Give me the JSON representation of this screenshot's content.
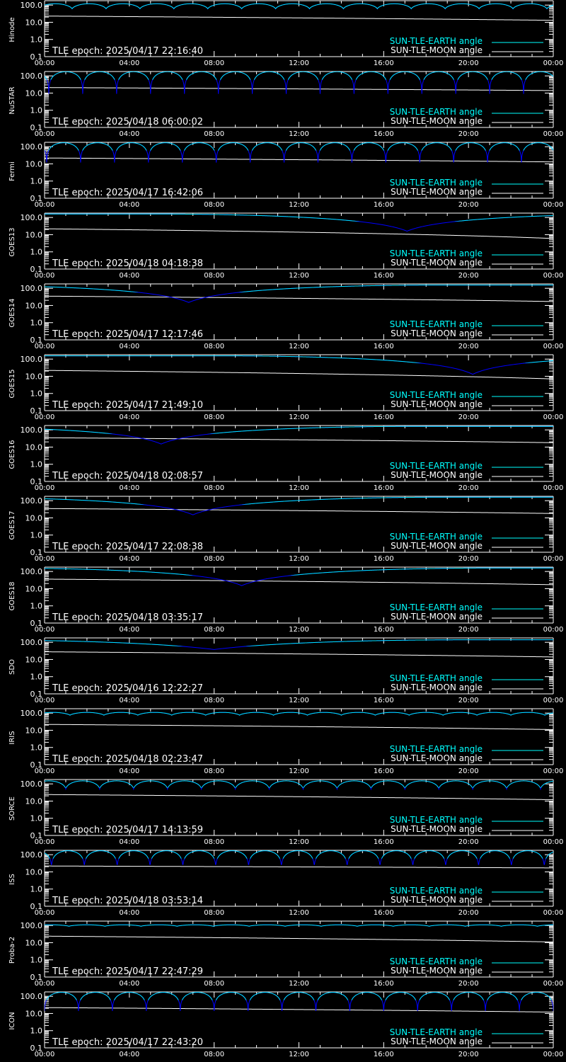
{
  "figure": {
    "background": "#000000",
    "axis_color": "#ffffff",
    "earth_color_high": "#00ffff",
    "earth_color_low": "#0000ff",
    "moon_color": "#ffffff"
  },
  "x_tick_labels": [
    "00:00",
    "04:00",
    "08:00",
    "12:00",
    "16:00",
    "20:00",
    "00:00"
  ],
  "y_tick_labels": [
    "100.0",
    "10.0",
    "1.0",
    "0.1"
  ],
  "legend": {
    "earth_label": "SUN-TLE-EARTH angle",
    "moon_label": "SUN-TLE-MOON angle"
  },
  "chart_data": [
    {
      "type": "line",
      "name": "Hinode",
      "epoch": "TLE epoch: 2025/04/17 22:16:40",
      "xlim": [
        0,
        24
      ],
      "ylim": [
        0.1,
        180
      ],
      "yscale": "log",
      "x_unit": "hours",
      "earth": {
        "model": "oscillating",
        "min": 60,
        "max": 120,
        "period_hours": 1.6,
        "phase_hours": 0.5
      },
      "moon": {
        "model": "linear",
        "start": 23,
        "end": 13
      }
    },
    {
      "type": "line",
      "name": "NuSTAR",
      "epoch": "TLE epoch: 2025/04/18 06:00:02",
      "xlim": [
        0,
        24
      ],
      "ylim": [
        0.1,
        180
      ],
      "yscale": "log",
      "x_unit": "hours",
      "earth": {
        "model": "oscillating",
        "min": 9,
        "max": 175,
        "period_hours": 1.6,
        "phase_hours": 1.0
      },
      "moon": {
        "model": "linear",
        "start": 21,
        "end": 14
      }
    },
    {
      "type": "line",
      "name": "Fermi",
      "epoch": "TLE epoch: 2025/04/17 16:42:06",
      "xlim": [
        0,
        24
      ],
      "ylim": [
        0.1,
        180
      ],
      "yscale": "log",
      "x_unit": "hours",
      "earth": {
        "model": "oscillating",
        "min": 12,
        "max": 170,
        "period_hours": 1.6,
        "phase_hours": 0.9
      },
      "moon": {
        "model": "linear",
        "start": 22,
        "end": 13
      }
    },
    {
      "type": "line",
      "name": "GOES13",
      "epoch": "TLE epoch: 2025/04/18 04:18:38",
      "xlim": [
        0,
        24
      ],
      "ylim": [
        0.1,
        180
      ],
      "yscale": "log",
      "x_unit": "hours",
      "earth": {
        "model": "geo",
        "min": 16,
        "max": 160,
        "min_hour": 17.1
      },
      "moon": {
        "model": "linear",
        "start": 22,
        "end": 6
      }
    },
    {
      "type": "line",
      "name": "GOES14",
      "epoch": "TLE epoch: 2025/04/17 12:17:46",
      "xlim": [
        0,
        24
      ],
      "ylim": [
        0.1,
        180
      ],
      "yscale": "log",
      "x_unit": "hours",
      "earth": {
        "model": "geo",
        "min": 15,
        "max": 155,
        "min_hour": 6.8
      },
      "moon": {
        "model": "linear",
        "start": 35,
        "end": 17
      }
    },
    {
      "type": "line",
      "name": "GOES15",
      "epoch": "TLE epoch: 2025/04/17 21:49:10",
      "xlim": [
        0,
        24
      ],
      "ylim": [
        0.1,
        180
      ],
      "yscale": "log",
      "x_unit": "hours",
      "earth": {
        "model": "geo",
        "min": 13,
        "max": 155,
        "min_hour": 20.2
      },
      "moon": {
        "model": "linear",
        "start": 22,
        "end": 7
      }
    },
    {
      "type": "line",
      "name": "GOES16",
      "epoch": "TLE epoch: 2025/04/18 02:08:57",
      "xlim": [
        0,
        24
      ],
      "ylim": [
        0.1,
        180
      ],
      "yscale": "log",
      "x_unit": "hours",
      "earth": {
        "model": "geo",
        "min": 15,
        "max": 160,
        "min_hour": 5.5
      },
      "moon": {
        "model": "linear",
        "start": 35,
        "end": 18
      }
    },
    {
      "type": "line",
      "name": "GOES17",
      "epoch": "TLE epoch: 2025/04/17 22:08:38",
      "xlim": [
        0,
        24
      ],
      "ylim": [
        0.1,
        180
      ],
      "yscale": "log",
      "x_unit": "hours",
      "earth": {
        "model": "geo",
        "min": 15,
        "max": 160,
        "min_hour": 7.0
      },
      "moon": {
        "model": "linear",
        "start": 35,
        "end": 18
      }
    },
    {
      "type": "line",
      "name": "GOES18",
      "epoch": "TLE epoch: 2025/04/18 03:35:17",
      "xlim": [
        0,
        24
      ],
      "ylim": [
        0.1,
        180
      ],
      "yscale": "log",
      "x_unit": "hours",
      "earth": {
        "model": "geo",
        "min": 15,
        "max": 160,
        "min_hour": 9.3
      },
      "moon": {
        "model": "linear",
        "start": 36,
        "end": 17
      }
    },
    {
      "type": "line",
      "name": "SDO",
      "epoch": "TLE epoch: 2025/04/16 12:22:27",
      "xlim": [
        0,
        24
      ],
      "ylim": [
        0.1,
        180
      ],
      "yscale": "log",
      "x_unit": "hours",
      "earth": {
        "model": "geo",
        "min": 38,
        "max": 140,
        "min_hour": 8.0
      },
      "moon": {
        "model": "linear",
        "start": 28,
        "end": 14
      }
    },
    {
      "type": "line",
      "name": "IRIS",
      "epoch": "TLE epoch: 2025/04/18 02:23:47",
      "xlim": [
        0,
        24
      ],
      "ylim": [
        0.1,
        180
      ],
      "yscale": "log",
      "x_unit": "hours",
      "earth": {
        "model": "oscillating",
        "min": 75,
        "max": 110,
        "period_hours": 1.6,
        "phase_hours": 0.4
      },
      "moon": {
        "model": "linear",
        "start": 22,
        "end": 11
      }
    },
    {
      "type": "line",
      "name": "SORCE",
      "epoch": "TLE epoch: 2025/04/17 14:13:59",
      "xlim": [
        0,
        24
      ],
      "ylim": [
        0.1,
        180
      ],
      "yscale": "log",
      "x_unit": "hours",
      "earth": {
        "model": "oscillating",
        "min": 50,
        "max": 150,
        "period_hours": 1.6,
        "phase_hours": 0.2
      },
      "moon": {
        "model": "linear",
        "start": 24,
        "end": 12
      }
    },
    {
      "type": "line",
      "name": "ISS",
      "epoch": "TLE epoch: 2025/04/18 03:53:14",
      "xlim": [
        0,
        24
      ],
      "ylim": [
        0.1,
        180
      ],
      "yscale": "log",
      "x_unit": "hours",
      "earth": {
        "model": "oscillating",
        "min": 18,
        "max": 170,
        "period_hours": 1.55,
        "phase_hours": 1.1
      },
      "moon": {
        "model": "linear",
        "start": 22,
        "end": 17
      }
    },
    {
      "type": "line",
      "name": "Proba-2",
      "epoch": "TLE epoch: 2025/04/17 22:47:29",
      "xlim": [
        0,
        24
      ],
      "ylim": [
        0.1,
        180
      ],
      "yscale": "log",
      "x_unit": "hours",
      "earth": {
        "model": "oscillating",
        "min": 90,
        "max": 110,
        "period_hours": 1.7,
        "phase_hours": 0.3
      },
      "moon": {
        "model": "linear",
        "start": 24,
        "end": 11
      }
    },
    {
      "type": "line",
      "name": "ICON",
      "epoch": "TLE epoch: 2025/04/17 22:43:20",
      "xlim": [
        0,
        24
      ],
      "ylim": [
        0.1,
        180
      ],
      "yscale": "log",
      "x_unit": "hours",
      "earth": {
        "model": "oscillating",
        "min": 14,
        "max": 170,
        "period_hours": 1.6,
        "phase_hours": 0.8
      },
      "moon": {
        "model": "linear",
        "start": 22,
        "end": 12
      }
    }
  ]
}
